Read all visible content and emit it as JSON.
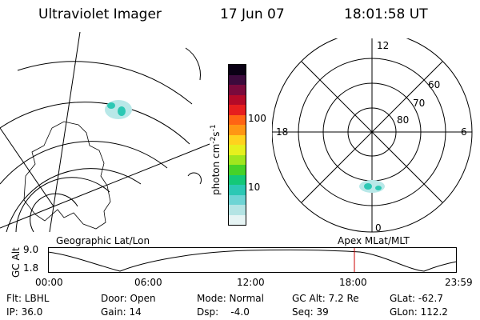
{
  "header": {
    "instrument": "Ultraviolet Imager",
    "date": "17 Jun 07",
    "time": "18:01:58 UT"
  },
  "colorbar": {
    "unit_label": "photon cm",
    "unit_exp1": "-2",
    "unit_s": "s",
    "unit_exp2": "-1",
    "ticks": [
      "100",
      "10"
    ],
    "scale": "log",
    "colors": [
      "#e6f4f4",
      "#b4e4e4",
      "#6ed4d4",
      "#2cc8b4",
      "#14c878",
      "#46d228",
      "#a0e61e",
      "#e6f01e",
      "#ffd21e",
      "#ff9614",
      "#ff6414",
      "#e61e1e",
      "#b40a28",
      "#7a0a3c",
      "#3c0a3c",
      "#0a0014"
    ]
  },
  "polar_plot": {
    "labels": {
      "top": "12",
      "left": "18",
      "right": "6",
      "bottom": "0",
      "r60": "60",
      "r70": "70",
      "r80": "80"
    }
  },
  "timeline": {
    "left_label": "Geographic Lat/Lon",
    "right_label": "Apex  MLat/MLT",
    "axis_title": "GC Alt",
    "y_top": "9.0",
    "y_bottom": "1.8",
    "x_ticks": [
      "00:00",
      "06:00",
      "12:00",
      "18:00",
      "23:59"
    ],
    "current_time_fraction": 0.751,
    "marker_color": "#cc0000"
  },
  "status": {
    "flt": "Flt: LBHL",
    "ip": "IP: 36.0",
    "door": "Door: Open",
    "gain": "Gain: 14",
    "mode": "Mode: Normal",
    "dsp": "Dsp:    -4.0",
    "gc_alt": "GC Alt: 7.2 Re",
    "seq": "Seq: 39",
    "glat": "GLat: -62.7",
    "glon": "GLon: 112.2"
  }
}
